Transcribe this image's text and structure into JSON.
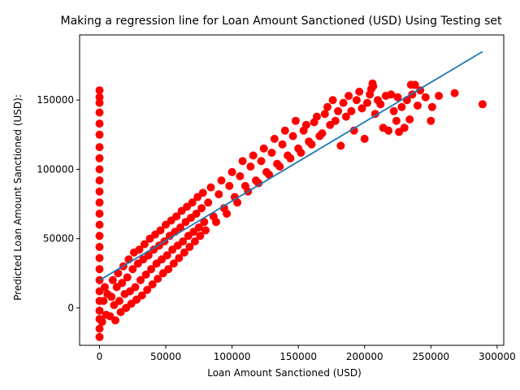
{
  "chart_data": {
    "type": "scatter",
    "title": "Making a regression line for Loan Amount Sanctioned (USD) Using Testing set",
    "xlabel": "Loan Amount Sanctioned (USD)",
    "ylabel": "Predicted Loan Amount Sanctioned (USD):",
    "xlim": [
      -15000,
      305000
    ],
    "ylim": [
      -27000,
      197000
    ],
    "xticks": [
      0,
      50000,
      100000,
      150000,
      200000,
      250000,
      300000
    ],
    "yticks": [
      0,
      50000,
      100000,
      150000
    ],
    "xtick_labels": [
      "0",
      "50000",
      "100000",
      "150000",
      "200000",
      "250000",
      "300000"
    ],
    "ytick_labels": [
      "0",
      "50000",
      "100000",
      "150000"
    ],
    "grid": false,
    "series": [
      {
        "kind": "scatter",
        "color": "#ff0000",
        "points": [
          [
            0,
            -21000
          ],
          [
            0,
            -15000
          ],
          [
            0,
            -8000
          ],
          [
            0,
            -2000
          ],
          [
            0,
            5000
          ],
          [
            0,
            12000
          ],
          [
            0,
            20000
          ],
          [
            0,
            28000
          ],
          [
            0,
            36000
          ],
          [
            0,
            44000
          ],
          [
            0,
            52000
          ],
          [
            0,
            60000
          ],
          [
            0,
            68000
          ],
          [
            0,
            76000
          ],
          [
            0,
            84000
          ],
          [
            0,
            92000
          ],
          [
            0,
            100000
          ],
          [
            0,
            108000
          ],
          [
            0,
            116000
          ],
          [
            0,
            125000
          ],
          [
            0,
            133000
          ],
          [
            0,
            141000
          ],
          [
            0,
            148000
          ],
          [
            0,
            152000
          ],
          [
            0,
            157000
          ],
          [
            2000,
            -10000
          ],
          [
            3000,
            5000
          ],
          [
            4000,
            15000
          ],
          [
            5000,
            -5000
          ],
          [
            6000,
            10000
          ],
          [
            8000,
            -6000
          ],
          [
            9000,
            8000
          ],
          [
            10000,
            20000
          ],
          [
            11000,
            2000
          ],
          [
            12000,
            -9000
          ],
          [
            13000,
            15000
          ],
          [
            14000,
            25000
          ],
          [
            15000,
            5000
          ],
          [
            16000,
            -3000
          ],
          [
            17000,
            18000
          ],
          [
            18000,
            30000
          ],
          [
            19000,
            10000
          ],
          [
            20000,
            0
          ],
          [
            21000,
            22000
          ],
          [
            22000,
            35000
          ],
          [
            23000,
            12000
          ],
          [
            24000,
            3000
          ],
          [
            25000,
            28000
          ],
          [
            26000,
            40000
          ],
          [
            27000,
            15000
          ],
          [
            28000,
            6000
          ],
          [
            29000,
            32000
          ],
          [
            30000,
            42000
          ],
          [
            31000,
            20000
          ],
          [
            32000,
            9000
          ],
          [
            33000,
            35000
          ],
          [
            34000,
            46000
          ],
          [
            35000,
            24000
          ],
          [
            36000,
            13000
          ],
          [
            37000,
            38000
          ],
          [
            38000,
            50000
          ],
          [
            39000,
            28000
          ],
          [
            40000,
            17000
          ],
          [
            41000,
            42000
          ],
          [
            42000,
            53000
          ],
          [
            43000,
            32000
          ],
          [
            44000,
            21000
          ],
          [
            45000,
            45000
          ],
          [
            46000,
            56000
          ],
          [
            47000,
            35000
          ],
          [
            48000,
            25000
          ],
          [
            49000,
            48000
          ],
          [
            50000,
            60000
          ],
          [
            51000,
            38000
          ],
          [
            52000,
            28000
          ],
          [
            53000,
            52000
          ],
          [
            54000,
            63000
          ],
          [
            55000,
            42000
          ],
          [
            56000,
            32000
          ],
          [
            57000,
            55000
          ],
          [
            58000,
            66000
          ],
          [
            59000,
            45000
          ],
          [
            60000,
            36000
          ],
          [
            61000,
            58000
          ],
          [
            62000,
            70000
          ],
          [
            63000,
            48000
          ],
          [
            64000,
            40000
          ],
          [
            65000,
            62000
          ],
          [
            66000,
            73000
          ],
          [
            67000,
            52000
          ],
          [
            68000,
            44000
          ],
          [
            69000,
            65000
          ],
          [
            70000,
            76000
          ],
          [
            71000,
            55000
          ],
          [
            72000,
            48000
          ],
          [
            73000,
            68000
          ],
          [
            74000,
            80000
          ],
          [
            75000,
            58000
          ],
          [
            76000,
            52000
          ],
          [
            77000,
            72000
          ],
          [
            78000,
            83000
          ],
          [
            79000,
            62000
          ],
          [
            80000,
            56000
          ],
          [
            82000,
            76000
          ],
          [
            84000,
            87000
          ],
          [
            86000,
            66000
          ],
          [
            88000,
            62000
          ],
          [
            90000,
            82000
          ],
          [
            92000,
            92000
          ],
          [
            94000,
            72000
          ],
          [
            96000,
            68000
          ],
          [
            98000,
            88000
          ],
          [
            100000,
            98000
          ],
          [
            102000,
            80000
          ],
          [
            104000,
            76000
          ],
          [
            106000,
            95000
          ],
          [
            108000,
            106000
          ],
          [
            110000,
            88000
          ],
          [
            112000,
            84000
          ],
          [
            114000,
            102000
          ],
          [
            116000,
            110000
          ],
          [
            118000,
            92000
          ],
          [
            120000,
            90000
          ],
          [
            122000,
            106000
          ],
          [
            124000,
            115000
          ],
          [
            126000,
            98000
          ],
          [
            128000,
            96000
          ],
          [
            130000,
            112000
          ],
          [
            132000,
            122000
          ],
          [
            134000,
            104000
          ],
          [
            136000,
            102000
          ],
          [
            138000,
            118000
          ],
          [
            140000,
            128000
          ],
          [
            142000,
            110000
          ],
          [
            144000,
            108000
          ],
          [
            146000,
            124000
          ],
          [
            148000,
            135000
          ],
          [
            150000,
            115000
          ],
          [
            152000,
            112000
          ],
          [
            154000,
            128000
          ],
          [
            156000,
            132000
          ],
          [
            158000,
            120000
          ],
          [
            160000,
            118000
          ],
          [
            162000,
            134000
          ],
          [
            164000,
            138000
          ],
          [
            166000,
            124000
          ],
          [
            168000,
            126000
          ],
          [
            170000,
            140000
          ],
          [
            172000,
            145000
          ],
          [
            174000,
            132000
          ],
          [
            176000,
            150000
          ],
          [
            178000,
            135000
          ],
          [
            180000,
            142000
          ],
          [
            182000,
            117000
          ],
          [
            184000,
            148000
          ],
          [
            186000,
            138000
          ],
          [
            188000,
            153000
          ],
          [
            190000,
            142000
          ],
          [
            192000,
            128000
          ],
          [
            194000,
            150000
          ],
          [
            196000,
            156000
          ],
          [
            198000,
            144000
          ],
          [
            200000,
            122000
          ],
          [
            202000,
            148000
          ],
          [
            204000,
            154000
          ],
          [
            205000,
            158000
          ],
          [
            206000,
            162000
          ],
          [
            206500,
            160000
          ],
          [
            208000,
            140000
          ],
          [
            210000,
            150000
          ],
          [
            212000,
            147000
          ],
          [
            214000,
            130000
          ],
          [
            216000,
            153000
          ],
          [
            218000,
            128000
          ],
          [
            220000,
            154000
          ],
          [
            222000,
            142000
          ],
          [
            224000,
            135000
          ],
          [
            225000,
            152000
          ],
          [
            226000,
            127000
          ],
          [
            228000,
            145000
          ],
          [
            230000,
            130000
          ],
          [
            232000,
            150000
          ],
          [
            234000,
            136000
          ],
          [
            235000,
            161000
          ],
          [
            236000,
            154000
          ],
          [
            238000,
            161000
          ],
          [
            240000,
            146000
          ],
          [
            242000,
            157000
          ],
          [
            246000,
            152000
          ],
          [
            250000,
            135000
          ],
          [
            251000,
            145000
          ],
          [
            256000,
            153000
          ],
          [
            268000,
            155000
          ],
          [
            289000,
            147000
          ]
        ]
      },
      {
        "kind": "line",
        "color": "#1f77b4",
        "x": [
          0,
          289000
        ],
        "y": [
          20000,
          185000
        ]
      }
    ]
  }
}
